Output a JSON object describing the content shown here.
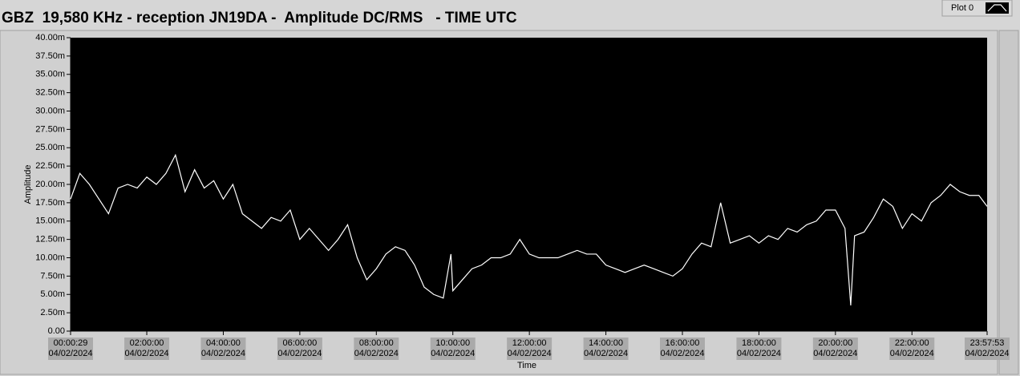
{
  "chart_data": {
    "type": "line",
    "title": "GBZ  19,580 KHz - reception JN19DA -  Amplitude DC/RMS   - TIME UTC",
    "x_label": "Time",
    "y_label": "Amplitude",
    "legend_label": "Plot 0",
    "series": [
      {
        "name": "Plot 0",
        "color": "#ffffff",
        "x": [
          29,
          900,
          1800,
          2700,
          3600,
          4500,
          5400,
          6300,
          7200,
          8100,
          9000,
          9900,
          10800,
          11700,
          12600,
          13500,
          14400,
          15300,
          16200,
          17100,
          18000,
          18900,
          19800,
          20700,
          21600,
          22500,
          23400,
          24300,
          25200,
          26100,
          27000,
          27900,
          28800,
          29700,
          30600,
          31500,
          32400,
          33300,
          34200,
          35100,
          35820,
          36000,
          36900,
          37800,
          38700,
          39600,
          40500,
          41400,
          42300,
          43200,
          44100,
          45000,
          45900,
          46800,
          47700,
          48600,
          49500,
          50400,
          51300,
          52200,
          53100,
          54000,
          54900,
          55800,
          56700,
          57600,
          58500,
          59400,
          60300,
          61200,
          62100,
          63000,
          63900,
          64800,
          65700,
          66600,
          67500,
          68400,
          69300,
          70200,
          71100,
          72000,
          72900,
          73440,
          73800,
          74700,
          75600,
          76500,
          77400,
          78300,
          79200,
          80100,
          81000,
          81900,
          82800,
          83700,
          84600,
          85500,
          86273
        ],
        "values": [
          18,
          21.5,
          20,
          18,
          16,
          19.5,
          20,
          19.5,
          21,
          20,
          21.5,
          24,
          19,
          22,
          19.5,
          20.5,
          18,
          20,
          16,
          15,
          14,
          15.5,
          15,
          16.5,
          12.5,
          14,
          12.5,
          11,
          12.5,
          14.5,
          10,
          7,
          8.5,
          10.5,
          11.5,
          11,
          9,
          6,
          5,
          4.5,
          10.5,
          5.5,
          7,
          8.5,
          9,
          10,
          10,
          10.5,
          12.5,
          10.5,
          10,
          10,
          10,
          10.5,
          11,
          10.5,
          10.5,
          9,
          8.5,
          8,
          8.5,
          9,
          8.5,
          8,
          7.5,
          8.5,
          10.5,
          12,
          11.5,
          17.5,
          12,
          12.5,
          13,
          12,
          13,
          12.5,
          14,
          13.5,
          14.5,
          15,
          16.5,
          16.5,
          14,
          3.5,
          13,
          13.5,
          15.5,
          18,
          17,
          14,
          16,
          15,
          17.5,
          18.5,
          20,
          19,
          18.5,
          18.5,
          17
        ]
      }
    ],
    "xlim": [
      29,
      86273
    ],
    "xticks": [
      {
        "value": 29,
        "label": [
          "00:00:29",
          "04/02/2024"
        ]
      },
      {
        "value": 7200,
        "label": [
          "02:00:00",
          "04/02/2024"
        ]
      },
      {
        "value": 14400,
        "label": [
          "04:00:00",
          "04/02/2024"
        ]
      },
      {
        "value": 21600,
        "label": [
          "06:00:00",
          "04/02/2024"
        ]
      },
      {
        "value": 28800,
        "label": [
          "08:00:00",
          "04/02/2024"
        ]
      },
      {
        "value": 36000,
        "label": [
          "10:00:00",
          "04/02/2024"
        ]
      },
      {
        "value": 43200,
        "label": [
          "12:00:00",
          "04/02/2024"
        ]
      },
      {
        "value": 50400,
        "label": [
          "14:00:00",
          "04/02/2024"
        ]
      },
      {
        "value": 57600,
        "label": [
          "16:00:00",
          "04/02/2024"
        ]
      },
      {
        "value": 64800,
        "label": [
          "18:00:00",
          "04/02/2024"
        ]
      },
      {
        "value": 72000,
        "label": [
          "20:00:00",
          "04/02/2024"
        ]
      },
      {
        "value": 79200,
        "label": [
          "22:00:00",
          "04/02/2024"
        ]
      },
      {
        "value": 86273,
        "label": [
          "23:57:53",
          "04/02/2024"
        ]
      }
    ],
    "ylim": [
      0,
      40
    ],
    "yticks": [
      {
        "value": 0,
        "label": "0.00"
      },
      {
        "value": 2.5,
        "label": "2.50m"
      },
      {
        "value": 5,
        "label": "5.00m"
      },
      {
        "value": 7.5,
        "label": "7.50m"
      },
      {
        "value": 10,
        "label": "10.00m"
      },
      {
        "value": 12.5,
        "label": "12.50m"
      },
      {
        "value": 15,
        "label": "15.00m"
      },
      {
        "value": 17.5,
        "label": "17.50m"
      },
      {
        "value": 20,
        "label": "20.00m"
      },
      {
        "value": 22.5,
        "label": "22.50m"
      },
      {
        "value": 25,
        "label": "25.00m"
      },
      {
        "value": 27.5,
        "label": "27.50m"
      },
      {
        "value": 30,
        "label": "30.00m"
      },
      {
        "value": 32.5,
        "label": "32.50m"
      },
      {
        "value": 35,
        "label": "35.00m"
      },
      {
        "value": 37.5,
        "label": "37.50m"
      },
      {
        "value": 40,
        "label": "40.00m"
      }
    ],
    "grid": false
  }
}
